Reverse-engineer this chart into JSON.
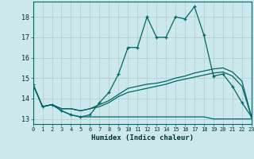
{
  "xlabel": "Humidex (Indice chaleur)",
  "bg_color": "#cce8ec",
  "grid_color": "#aacccc",
  "line_color": "#006666",
  "xlim": [
    0,
    23
  ],
  "ylim": [
    12.75,
    18.75
  ],
  "xticks": [
    0,
    1,
    2,
    3,
    4,
    5,
    6,
    7,
    8,
    9,
    10,
    11,
    12,
    13,
    14,
    15,
    16,
    17,
    18,
    19,
    20,
    21,
    22,
    23
  ],
  "yticks": [
    13,
    14,
    15,
    16,
    17,
    18
  ],
  "line1_x": [
    0,
    1,
    2,
    3,
    4,
    5,
    6,
    7,
    8,
    9,
    10,
    11,
    12,
    13,
    14,
    15,
    16,
    17,
    18,
    19,
    20,
    21,
    22,
    23
  ],
  "line1_y": [
    14.7,
    13.6,
    13.7,
    13.4,
    13.2,
    13.1,
    13.2,
    13.8,
    14.3,
    15.2,
    16.5,
    16.5,
    18.0,
    17.0,
    17.0,
    18.0,
    17.9,
    18.5,
    17.1,
    15.1,
    15.2,
    14.6,
    13.8,
    13.1
  ],
  "line2_x": [
    0,
    1,
    2,
    3,
    4,
    5,
    6,
    7,
    8,
    9,
    10,
    11,
    12,
    13,
    14,
    15,
    16,
    17,
    18,
    19,
    20,
    21,
    22,
    23
  ],
  "line2_y": [
    14.7,
    13.6,
    13.7,
    13.4,
    13.2,
    13.1,
    13.1,
    13.1,
    13.1,
    13.1,
    13.1,
    13.1,
    13.1,
    13.1,
    13.1,
    13.1,
    13.1,
    13.1,
    13.1,
    13.0,
    13.0,
    13.0,
    13.0,
    13.0
  ],
  "line3_x": [
    0,
    1,
    2,
    3,
    4,
    5,
    6,
    7,
    8,
    9,
    10,
    11,
    12,
    13,
    14,
    15,
    16,
    17,
    18,
    19,
    20,
    21,
    22,
    23
  ],
  "line3_y": [
    14.7,
    13.6,
    13.7,
    13.5,
    13.5,
    13.4,
    13.5,
    13.6,
    13.8,
    14.1,
    14.3,
    14.4,
    14.5,
    14.6,
    14.7,
    14.85,
    14.95,
    15.05,
    15.15,
    15.25,
    15.3,
    15.1,
    14.6,
    13.1
  ],
  "line4_x": [
    0,
    1,
    2,
    3,
    4,
    5,
    6,
    7,
    8,
    9,
    10,
    11,
    12,
    13,
    14,
    15,
    16,
    17,
    18,
    19,
    20,
    21,
    22,
    23
  ],
  "line4_y": [
    14.7,
    13.6,
    13.7,
    13.5,
    13.5,
    13.4,
    13.5,
    13.7,
    13.9,
    14.2,
    14.5,
    14.6,
    14.7,
    14.75,
    14.85,
    15.0,
    15.1,
    15.25,
    15.35,
    15.45,
    15.5,
    15.3,
    14.85,
    13.1
  ]
}
